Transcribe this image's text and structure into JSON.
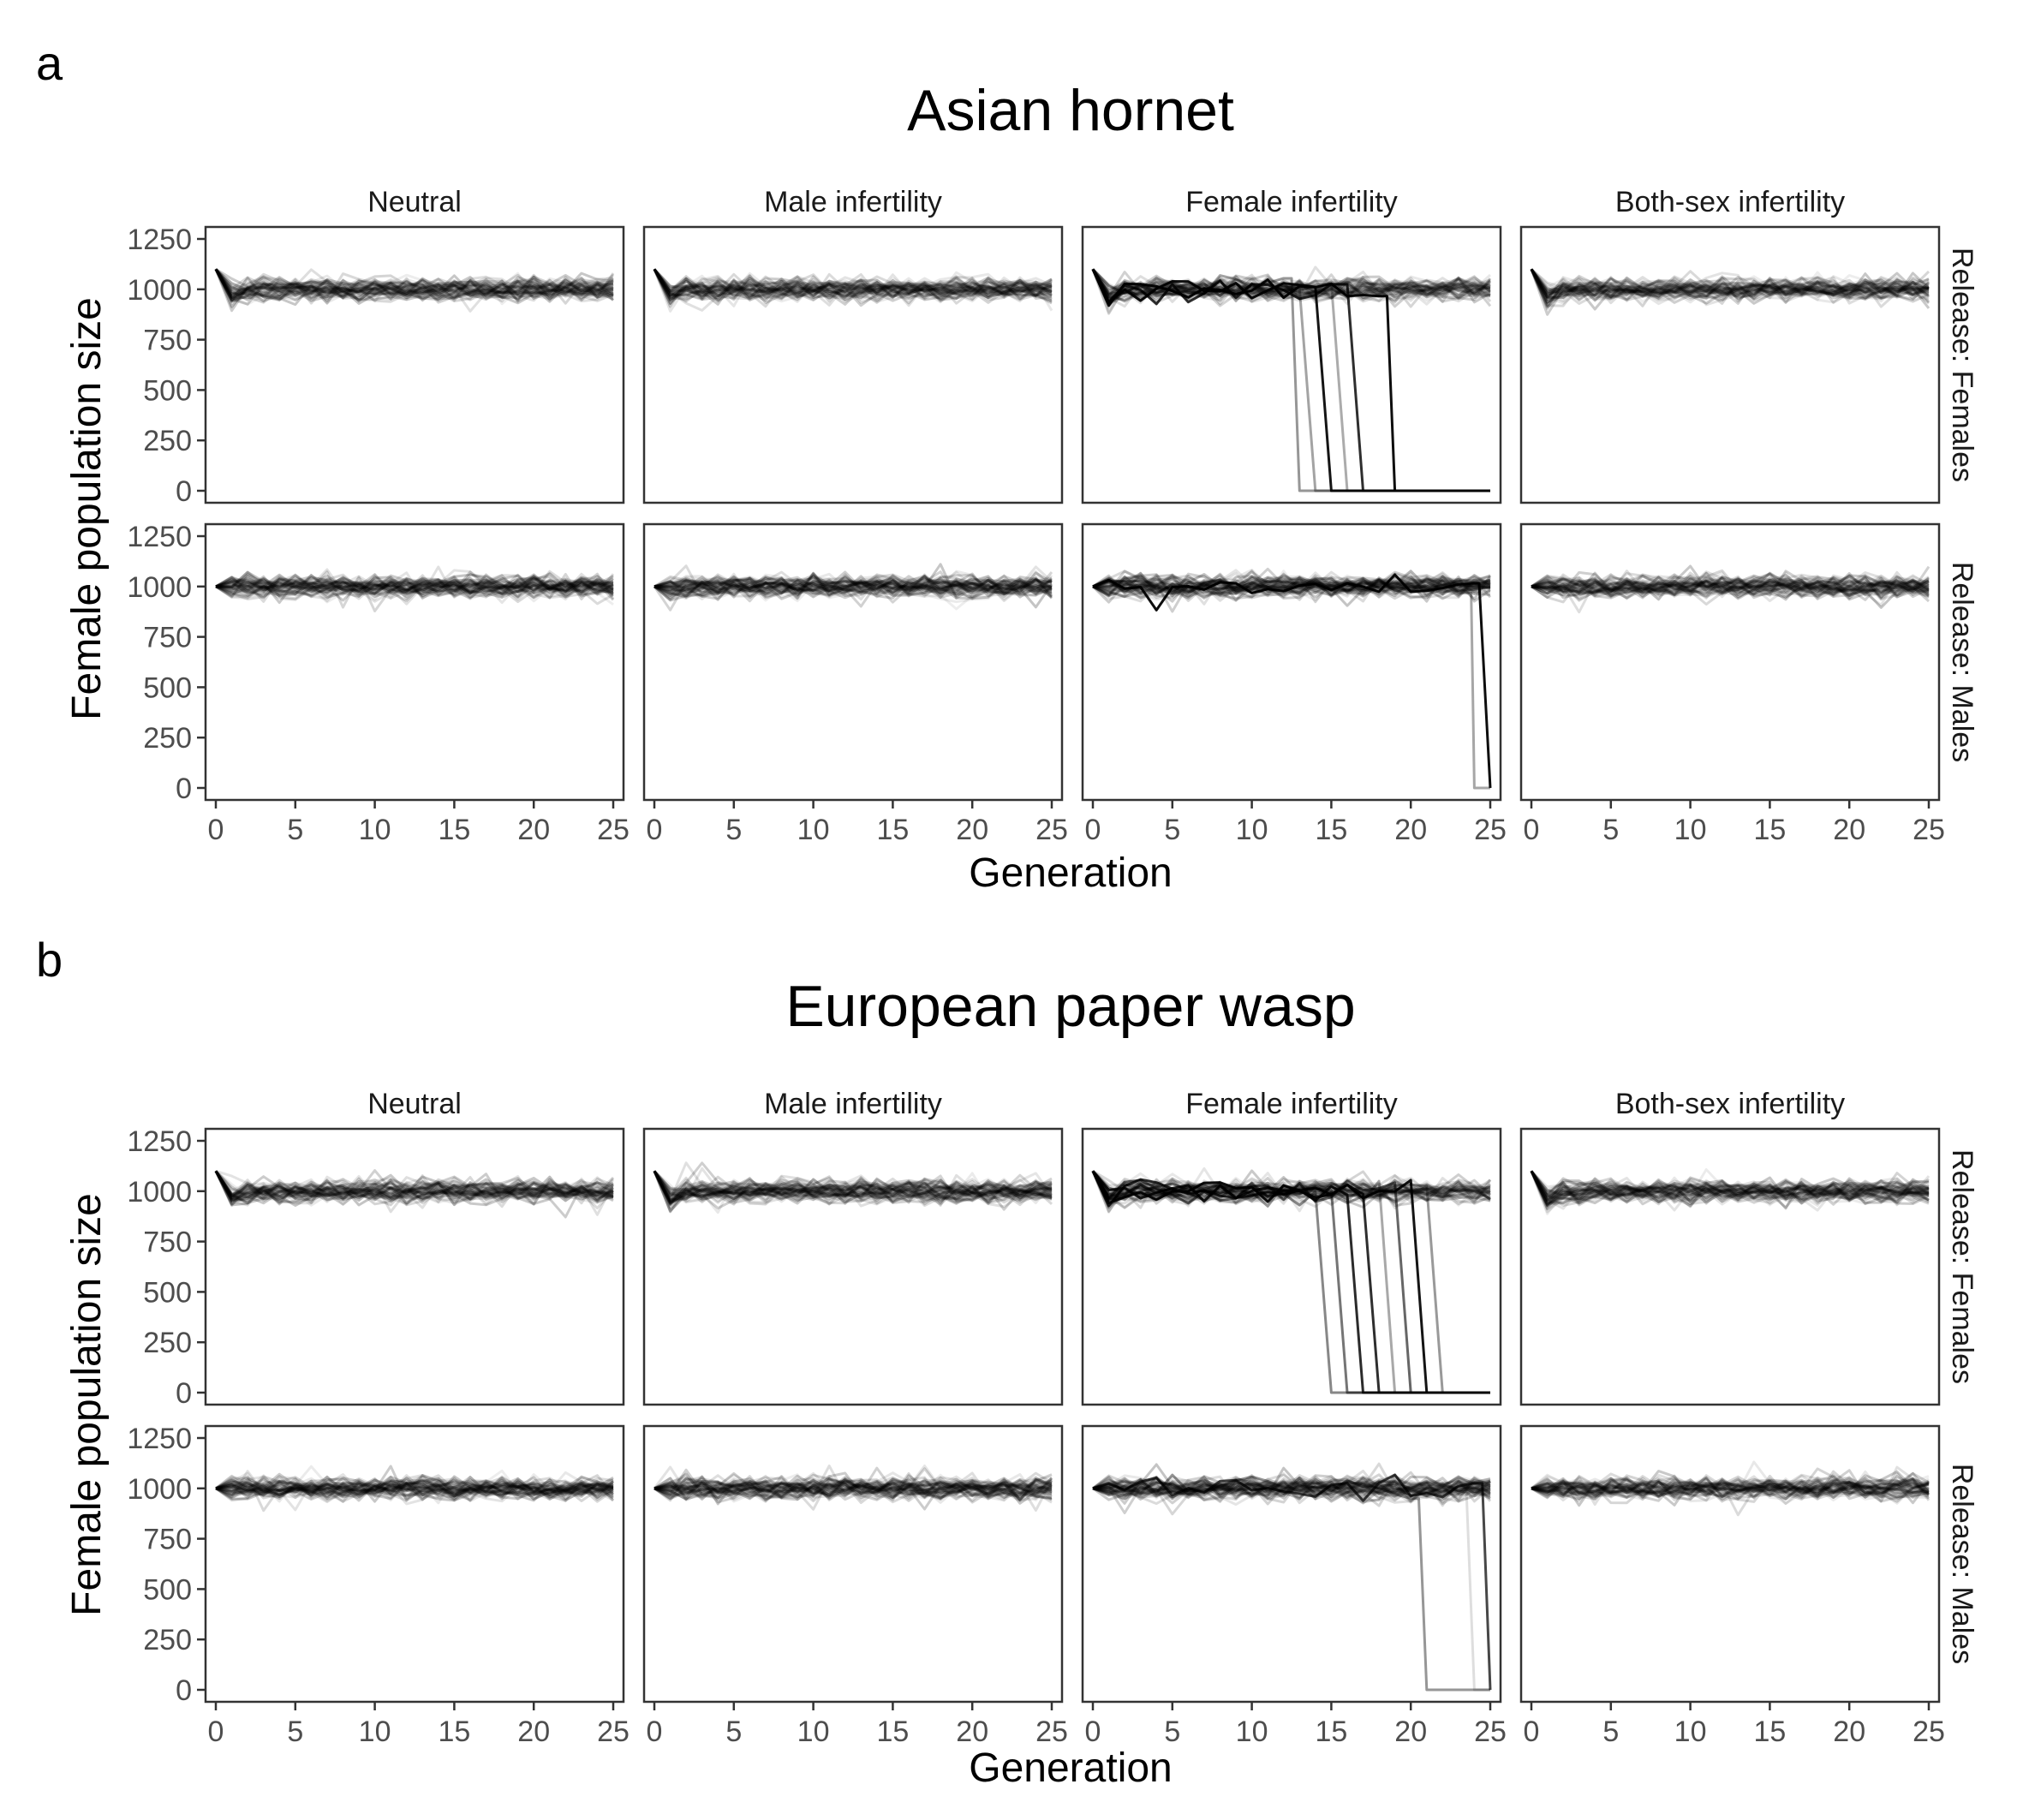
{
  "chart_data": [
    {
      "type": "line",
      "panel_label": "a",
      "title": "Asian hornet",
      "xlabel": "Generation",
      "ylabel": "Female population size",
      "xlim": [
        0,
        25
      ],
      "ylim": [
        0,
        1250
      ],
      "x_ticks": [
        0,
        5,
        10,
        15,
        20,
        25
      ],
      "y_ticks": [
        0,
        250,
        500,
        750,
        1000,
        1250
      ],
      "columns": [
        "Neutral",
        "Male infertility",
        "Female infertility",
        "Both-sex infertility"
      ],
      "rows": [
        "Release: Females",
        "Release: Males"
      ],
      "grid": false,
      "legend": "none",
      "line_color": "#000000",
      "simulation_runs_per_panel": 50,
      "baseline_female_population": 1000,
      "initial_female_population": {
        "Release: Females": 1100,
        "Release: Males": 1000
      },
      "fluctuation_range": [
        900,
        1150
      ],
      "collapse_events": [
        {
          "row": "Release: Females",
          "column": "Female infertility",
          "drop_generations": [
            12.5,
            13,
            14,
            15,
            16,
            18.5
          ],
          "final_value": 0
        },
        {
          "row": "Release: Males",
          "column": "Female infertility",
          "drop_generations": [
            23.8,
            24.3
          ],
          "final_value": 0
        }
      ]
    },
    {
      "type": "line",
      "panel_label": "b",
      "title": "European paper wasp",
      "xlabel": "Generation",
      "ylabel": "Female population size",
      "xlim": [
        0,
        25
      ],
      "ylim": [
        0,
        1250
      ],
      "x_ticks": [
        0,
        5,
        10,
        15,
        20,
        25
      ],
      "y_ticks": [
        0,
        250,
        500,
        750,
        1000,
        1250
      ],
      "columns": [
        "Neutral",
        "Male infertility",
        "Female infertility",
        "Both-sex infertility"
      ],
      "rows": [
        "Release: Females",
        "Release: Males"
      ],
      "grid": false,
      "legend": "none",
      "line_color": "#000000",
      "simulation_runs_per_panel": 50,
      "baseline_female_population": 1000,
      "initial_female_population": {
        "Release: Females": 1100,
        "Release: Males": 1000
      },
      "fluctuation_range": [
        900,
        1150
      ],
      "collapse_events": [
        {
          "row": "Release: Females",
          "column": "Female infertility",
          "drop_generations": [
            14,
            15,
            16,
            17,
            18,
            19,
            20,
            21
          ],
          "final_value": 0
        },
        {
          "row": "Release: Males",
          "column": "Female infertility",
          "drop_generations": [
            20.5,
            23.5,
            24.5
          ],
          "final_value": 0
        }
      ]
    }
  ]
}
